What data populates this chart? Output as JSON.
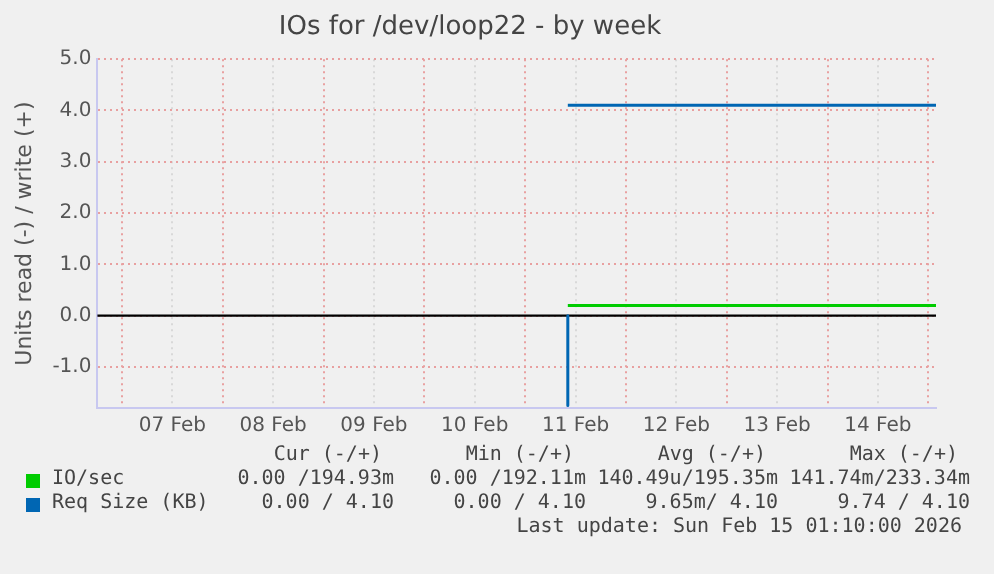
{
  "chart_data": {
    "type": "line",
    "title": "IOs for /dev/loop22 - by week",
    "ylabel": "Units read (-) / write (+)",
    "xlim": [
      "2026-02-06T18:10",
      "2026-02-15T01:50"
    ],
    "xticks": [
      {
        "value": "2026-02-07T00:00",
        "label": null
      },
      {
        "value": "2026-02-07T12:00",
        "label": "07 Feb"
      },
      {
        "value": "2026-02-08T00:00",
        "label": null
      },
      {
        "value": "2026-02-08T12:00",
        "label": "08 Feb"
      },
      {
        "value": "2026-02-09T00:00",
        "label": null
      },
      {
        "value": "2026-02-09T12:00",
        "label": "09 Feb"
      },
      {
        "value": "2026-02-10T00:00",
        "label": null
      },
      {
        "value": "2026-02-10T12:00",
        "label": "10 Feb"
      },
      {
        "value": "2026-02-11T00:00",
        "label": null
      },
      {
        "value": "2026-02-11T12:00",
        "label": "11 Feb"
      },
      {
        "value": "2026-02-12T00:00",
        "label": null
      },
      {
        "value": "2026-02-12T12:00",
        "label": "12 Feb"
      },
      {
        "value": "2026-02-13T00:00",
        "label": null
      },
      {
        "value": "2026-02-13T12:00",
        "label": "13 Feb"
      },
      {
        "value": "2026-02-14T00:00",
        "label": null
      },
      {
        "value": "2026-02-14T12:00",
        "label": "14 Feb"
      },
      {
        "value": "2026-02-15T00:00",
        "label": null
      }
    ],
    "ylim": [
      -1.8,
      5.0
    ],
    "yticks": [
      {
        "value": -1,
        "label": "-1.0"
      },
      {
        "value": 0,
        "label": "0.0"
      },
      {
        "value": 1,
        "label": "1.0"
      },
      {
        "value": 2,
        "label": "2.0"
      },
      {
        "value": 3,
        "label": "3.0"
      },
      {
        "value": 4,
        "label": "4.0"
      },
      {
        "value": 5,
        "label": "5.0"
      }
    ],
    "grid": true,
    "legend": "bottom",
    "ref_lines": [
      {
        "axis": "y",
        "value": 0,
        "color": "#000000"
      }
    ],
    "series": [
      {
        "name": "IO/sec",
        "color": "#00cc00",
        "x": [
          "2026-02-11T10:10",
          "2026-02-15T01:50"
        ],
        "values": [
          0.2,
          0.2
        ]
      },
      {
        "name": "Req Size (KB)",
        "color": "#0066b3",
        "x": [
          "2026-02-11T10:10",
          "2026-02-15T01:50"
        ],
        "values": [
          4.1,
          4.1
        ]
      },
      {
        "color": "#0066b3",
        "x": [
          "2026-02-11T10:10",
          "2026-02-11T10:10"
        ],
        "values": [
          0,
          -1.75
        ]
      }
    ],
    "annotations": [
      "Cur (-/+)",
      "Min (-/+)",
      "Avg (-/+)",
      "Max (-/+)",
      "0.00 /194.93m",
      "0.00 /192.11m",
      "140.49u/195.35m",
      "141.74m/233.34m",
      "0.00 / 4.10",
      "0.00 / 4.10",
      "9.65m/ 4.10",
      "9.74 / 4.10",
      "Last update: Sun Feb 15 01:10:00 2026"
    ]
  }
}
